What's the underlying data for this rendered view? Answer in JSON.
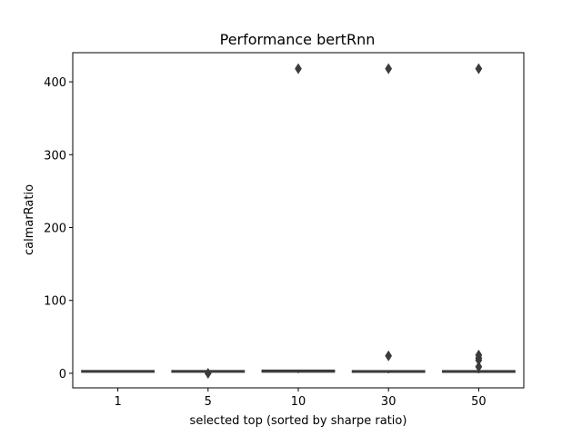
{
  "chart_data": {
    "type": "box",
    "title": "Performance bertRnn",
    "xlabel": "selected top (sorted by sharpe ratio)",
    "ylabel": "calmarRatio",
    "categories": [
      "1",
      "5",
      "10",
      "30",
      "50"
    ],
    "ylim": [
      -20,
      440
    ],
    "yticks": [
      0,
      100,
      200,
      300,
      400
    ],
    "ytick_labels": [
      "0",
      "100",
      "200",
      "300",
      "400"
    ],
    "grid": false,
    "box_color": "#3b3b3b",
    "boxes": [
      {
        "category": "1",
        "whisker_low": 1.5,
        "q1": 2.0,
        "median": 2.3,
        "q3": 2.6,
        "whisker_high": 3.0,
        "outliers": []
      },
      {
        "category": "5",
        "whisker_low": 1.3,
        "q1": 1.8,
        "median": 2.2,
        "q3": 2.6,
        "whisker_high": 3.0,
        "outliers": [
          0
        ]
      },
      {
        "category": "10",
        "whisker_low": 0.3,
        "q1": 0.8,
        "median": 2.0,
        "q3": 3.2,
        "whisker_high": 4.0,
        "outliers": [
          418
        ]
      },
      {
        "category": "30",
        "whisker_low": 0.0,
        "q1": 0.5,
        "median": 1.5,
        "q3": 2.5,
        "whisker_high": 3.5,
        "outliers": [
          24,
          418
        ]
      },
      {
        "category": "50",
        "whisker_low": 0.0,
        "q1": 0.5,
        "median": 1.5,
        "q3": 2.5,
        "whisker_high": 3.5,
        "outliers": [
          9,
          18,
          21,
          25,
          418
        ]
      }
    ]
  }
}
